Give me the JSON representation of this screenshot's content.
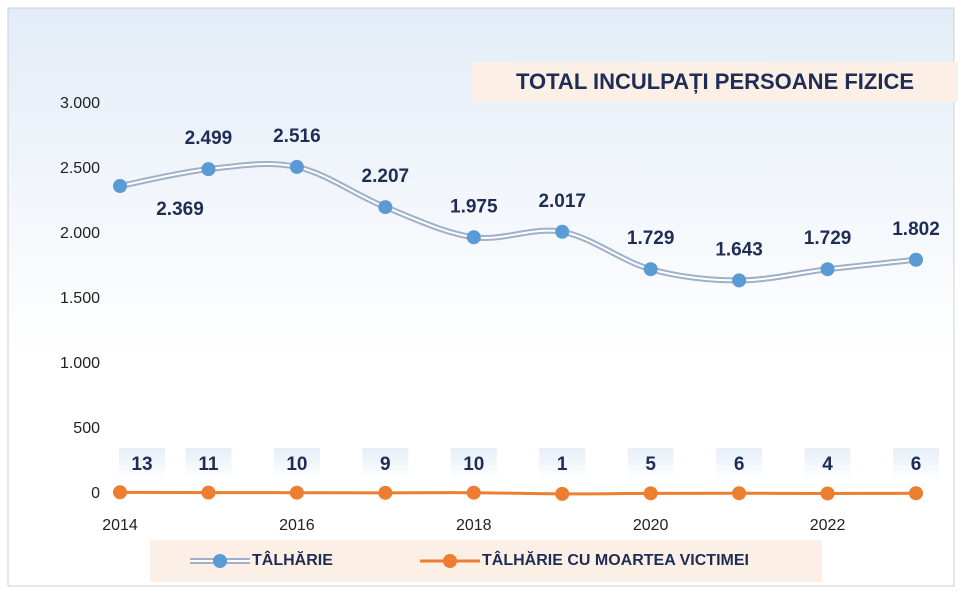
{
  "chart_data": {
    "type": "line",
    "title": "TOTAL INCULPAȚI PERSOANE FIZICE",
    "x": [
      2014,
      2015,
      2016,
      2017,
      2018,
      2019,
      2020,
      2021,
      2022,
      2023
    ],
    "xlim": [
      2014,
      2023
    ],
    "xticks": [
      2014,
      2016,
      2018,
      2020,
      2022
    ],
    "ylim": [
      0,
      3000
    ],
    "yticks": [
      0,
      500,
      {
        "value": 1000,
        "label": "1.000"
      },
      {
        "value": 1500,
        "label": "1.500"
      },
      {
        "value": 2000,
        "label": "2.000"
      },
      {
        "value": 2500,
        "label": "2.500"
      },
      {
        "value": 3000,
        "label": "3.000"
      }
    ],
    "legend": "bottom",
    "series": [
      {
        "name": "TÂLHĂRIE",
        "color": "#5b9bd5",
        "values": [
          2369,
          2499,
          2516,
          2207,
          1975,
          2017,
          1729,
          1643,
          1729,
          1802
        ],
        "value_labels": [
          "2.369",
          "2.499",
          "2.516",
          "2.207",
          "1.975",
          "2.017",
          "1.729",
          "1.643",
          "1.729",
          "1.802"
        ]
      },
      {
        "name": "TÂLHĂRIE CU MOARTEA VICTIMEI",
        "color": "#ed7d31",
        "values": [
          13,
          11,
          10,
          9,
          10,
          1,
          5,
          6,
          4,
          6
        ]
      }
    ]
  }
}
